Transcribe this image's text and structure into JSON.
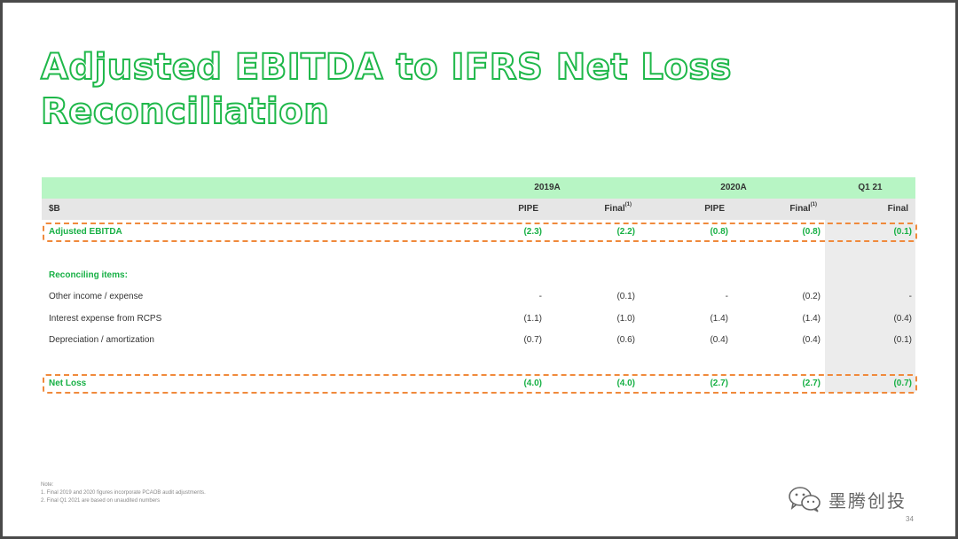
{
  "title_lines": [
    "Adjusted EBITDA to IFRS Net Loss",
    "Reconciliation"
  ],
  "table": {
    "year_headers": [
      "2019A",
      "2020A",
      "Q1 21"
    ],
    "unit_label": "$B",
    "column_headers": [
      "PIPE",
      "Final",
      "PIPE",
      "Final",
      "Final"
    ],
    "footnote_mark": "(1)",
    "adjusted_ebitda": {
      "label": "Adjusted EBITDA",
      "values": [
        "(2.3)",
        "(2.2)",
        "(0.8)",
        "(0.8)",
        "(0.1)"
      ]
    },
    "reconciling_header": "Reconciling items:",
    "items": [
      {
        "label": "Other income / expense",
        "values": [
          "-",
          "(0.1)",
          "-",
          "(0.2)",
          "-"
        ]
      },
      {
        "label": "Interest expense from RCPS",
        "values": [
          "(1.1)",
          "(1.0)",
          "(1.4)",
          "(1.4)",
          "(0.4)"
        ]
      },
      {
        "label": "Depreciation / amortization",
        "values": [
          "(0.7)",
          "(0.6)",
          "(0.4)",
          "(0.4)",
          "(0.1)"
        ]
      }
    ],
    "net_loss": {
      "label": "Net Loss",
      "values": [
        "(4.0)",
        "(4.0)",
        "(2.7)",
        "(2.7)",
        "(0.7)"
      ]
    }
  },
  "notes": {
    "heading": "Note:",
    "lines": [
      "1. Final 2019 and 2020 figures incorporate PCAOB audit adjustments.",
      "2. Final Q1 2021 are based on unaudited numbers"
    ]
  },
  "watermark": {
    "text": "墨腾创投",
    "icon": "wechat-icon"
  },
  "page_number": "34",
  "colors": {
    "accent_green": "#1fb84a",
    "header_green": "#b7f5c4",
    "highlight_orange": "#f08a3c"
  }
}
